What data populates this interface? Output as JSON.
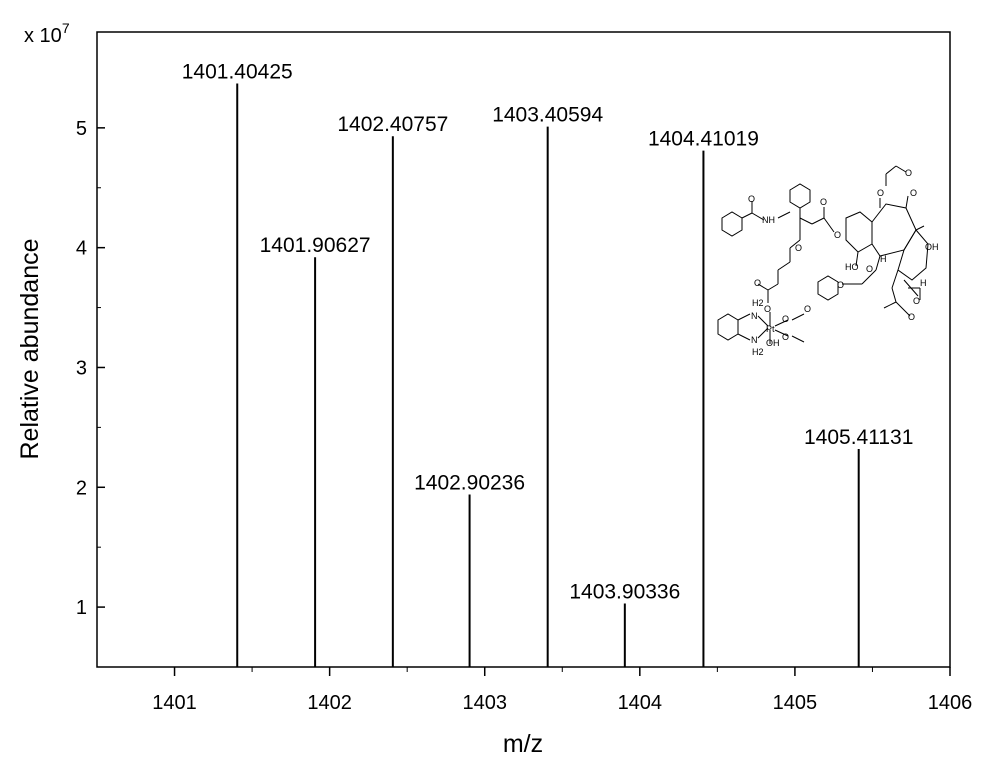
{
  "chart_data": {
    "type": "bar",
    "title": "",
    "xlabel": "m/z",
    "ylabel": "Relative abundance",
    "y_multiplier_label": "x 10",
    "y_multiplier_exponent": "7",
    "xlim": [
      1400.5,
      1406
    ],
    "ylim": [
      0.5,
      5.8
    ],
    "x_ticks": [
      1401,
      1402,
      1403,
      1404,
      1405,
      1406
    ],
    "x_tick_labels": [
      "1401",
      "1402",
      "1403",
      "1404",
      "1405",
      "1406"
    ],
    "y_ticks": [
      1,
      2,
      3,
      4,
      5
    ],
    "y_tick_labels": [
      "1",
      "2",
      "3",
      "4",
      "5"
    ],
    "grid": false,
    "series": [
      {
        "x": [
          1401.40425,
          1401.90627,
          1402.40757,
          1402.90236,
          1403.40594,
          1403.90336,
          1404.41019,
          1405.41131
        ],
        "values": [
          5.37,
          3.92,
          4.93,
          1.94,
          5.01,
          1.03,
          4.81,
          2.32
        ],
        "labels": [
          "1401.40425",
          "1401.90627",
          "1402.40757",
          "1402.90236",
          "1403.40594",
          "1403.90336",
          "1404.41019",
          "1405.41131"
        ]
      }
    ]
  },
  "structure_inset": {
    "atom_labels": [
      "NH",
      "O",
      "O",
      "O",
      "O",
      "O",
      "O",
      "O",
      "O",
      "O",
      "O",
      "O",
      "O",
      "OH",
      "HO",
      "H",
      "H",
      "O",
      "H2",
      "N",
      "Pt",
      "N",
      "H2",
      "OH",
      "O",
      "O",
      "O"
    ]
  }
}
